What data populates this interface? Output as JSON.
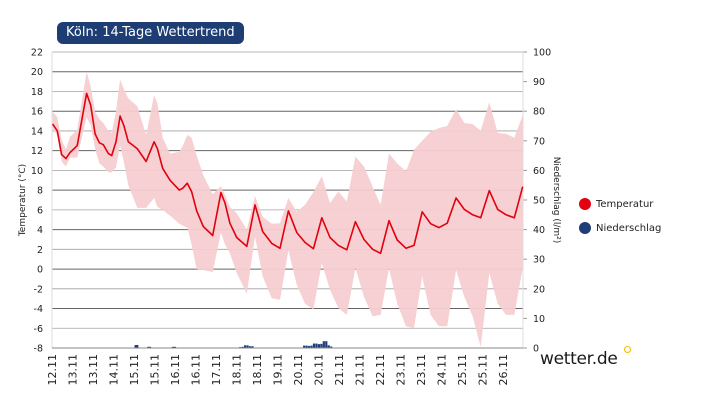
{
  "title": "Köln: 14-Tage Wettertrend",
  "logo": "wetter.de",
  "legend": [
    {
      "label": "Temperatur",
      "color": "#e3000f"
    },
    {
      "label": "Niederschlag",
      "color": "#1f3d78"
    }
  ],
  "colors": {
    "line": "#e3000f",
    "band": "#f5cdd0",
    "bars": "#1f3d78",
    "grid": "#555555",
    "title_bg": "#1e3d73",
    "logo_dot": "#f5b800"
  },
  "chart_data": {
    "type": "line",
    "ylabel": "Temperatur (°C)",
    "y2label": "Niederschlag (l/m²)",
    "ylim": [
      -8,
      22
    ],
    "y2lim": [
      0,
      100
    ],
    "yticks": [
      22,
      20,
      18,
      16,
      14,
      12,
      10,
      8,
      6,
      4,
      2,
      0,
      -2,
      -4,
      -6,
      -8
    ],
    "y2ticks": [
      100,
      90,
      80,
      70,
      60,
      50,
      40,
      30,
      20,
      10,
      0
    ],
    "grid": true,
    "legend_position": "right",
    "x_tick_labels": [
      "12.11",
      "13.11",
      "13.11",
      "14.11",
      "15.11",
      "15.11",
      "16.11",
      "16.11",
      "17.11",
      "18.11",
      "18.11",
      "19.11",
      "20.11",
      "20.11",
      "21.11",
      "21.11",
      "22.11",
      "23.11",
      "23.11",
      "24.11",
      "25.11",
      "25.11",
      "26.11"
    ],
    "x_unit": "position along the date tick labels (0 = first label 12.11)",
    "temperature": {
      "name": "Temperatur",
      "points": [
        [
          0.03,
          14.7,
          14.2,
          15.95
        ],
        [
          0.26,
          14.0,
          13.6,
          15.4
        ],
        [
          0.47,
          11.6,
          10.9,
          13.1
        ],
        [
          0.68,
          11.2,
          10.4,
          12.1
        ],
        [
          0.88,
          11.8,
          11.3,
          13.4
        ],
        [
          1.23,
          12.5,
          11.3,
          14.1
        ],
        [
          1.69,
          17.8,
          15.4,
          20.0
        ],
        [
          1.89,
          16.6,
          14.6,
          18.5
        ],
        [
          2.1,
          13.7,
          12.2,
          15.95
        ],
        [
          2.31,
          12.8,
          10.7,
          15.2
        ],
        [
          2.5,
          12.6,
          10.4,
          14.8
        ],
        [
          2.75,
          11.7,
          9.8,
          14.0
        ],
        [
          2.91,
          11.5,
          9.8,
          13.8
        ],
        [
          3.12,
          12.9,
          10.3,
          16.0
        ],
        [
          3.32,
          15.5,
          12.5,
          19.2
        ],
        [
          3.51,
          14.5,
          10.8,
          18.2
        ],
        [
          3.72,
          12.9,
          8.5,
          17.3
        ],
        [
          4.16,
          12.2,
          6.2,
          16.5
        ],
        [
          4.59,
          10.9,
          6.2,
          13.6
        ],
        [
          4.98,
          12.9,
          7.2,
          17.6
        ],
        [
          5.14,
          12.2,
          6.3,
          16.8
        ],
        [
          5.4,
          10.2,
          6.0,
          13.3
        ],
        [
          5.76,
          9.0,
          5.4,
          11.7
        ],
        [
          6.21,
          8.0,
          4.6,
          11.9
        ],
        [
          6.38,
          8.2,
          4.4,
          12.5
        ],
        [
          6.6,
          8.7,
          4.2,
          13.6
        ],
        [
          6.81,
          7.85,
          2.5,
          13.3
        ],
        [
          7.06,
          5.9,
          0.0,
          11.5
        ],
        [
          7.38,
          4.3,
          -0.1,
          9.5
        ],
        [
          7.84,
          3.4,
          -0.3,
          7.6
        ],
        [
          8.24,
          7.75,
          3.7,
          8.4
        ],
        [
          8.44,
          6.7,
          2.5,
          7.5
        ],
        [
          8.68,
          4.65,
          1.6,
          6.3
        ],
        [
          9.01,
          3.2,
          -0.4,
          5.65
        ],
        [
          9.5,
          2.3,
          -2.5,
          4.0
        ],
        [
          9.9,
          6.5,
          3.3,
          7.4
        ],
        [
          10.28,
          3.8,
          -0.75,
          5.3
        ],
        [
          10.72,
          2.6,
          -2.95,
          4.6
        ],
        [
          11.12,
          2.1,
          -3.1,
          4.65
        ],
        [
          11.53,
          5.9,
          1.9,
          7.2
        ],
        [
          11.94,
          3.7,
          -1.6,
          5.8
        ],
        [
          12.34,
          2.7,
          -3.5,
          6.5
        ],
        [
          12.75,
          2.05,
          -4.1,
          7.8
        ],
        [
          13.16,
          5.2,
          0.6,
          9.4
        ],
        [
          13.56,
          3.2,
          -2.1,
          6.7
        ],
        [
          13.97,
          2.4,
          -3.95,
          7.85
        ],
        [
          14.38,
          1.95,
          -4.65,
          6.85
        ],
        [
          14.8,
          4.8,
          0.1,
          11.4
        ],
        [
          15.22,
          3.0,
          -2.8,
          10.4
        ],
        [
          15.64,
          2.0,
          -4.8,
          8.35
        ],
        [
          16.03,
          1.6,
          -4.65,
          6.5
        ],
        [
          16.44,
          4.9,
          0.1,
          11.7
        ],
        [
          16.84,
          2.95,
          -3.5,
          10.7
        ],
        [
          17.27,
          2.1,
          -5.8,
          9.9
        ],
        [
          17.66,
          2.4,
          -6.0,
          12.1
        ],
        [
          18.06,
          5.8,
          -0.75,
          13.0
        ],
        [
          18.47,
          4.6,
          -4.65,
          13.9
        ],
        [
          18.88,
          4.2,
          -5.8,
          14.3
        ],
        [
          19.28,
          4.65,
          -5.8,
          14.5
        ],
        [
          19.71,
          7.2,
          -0.1,
          16.2
        ],
        [
          20.11,
          6.05,
          -2.8,
          14.8
        ],
        [
          20.52,
          5.5,
          -4.8,
          14.7
        ],
        [
          20.91,
          5.2,
          -7.9,
          14.0
        ],
        [
          21.33,
          7.95,
          -0.4,
          16.9
        ],
        [
          21.74,
          6.05,
          -3.5,
          13.8
        ],
        [
          22.15,
          5.5,
          -4.65,
          13.7
        ],
        [
          22.55,
          5.2,
          -4.65,
          13.3
        ],
        [
          22.96,
          8.35,
          0.1,
          15.6
        ]
      ],
      "point_format": [
        "x",
        "temperature",
        "range_min",
        "range_max"
      ]
    },
    "precipitation": {
      "name": "Niederschlag",
      "bars": [
        [
          4.08,
          1.0
        ],
        [
          4.16,
          1.0
        ],
        [
          4.7,
          0.4
        ],
        [
          4.78,
          0.4
        ],
        [
          5.9,
          0.4
        ],
        [
          6.0,
          0.4
        ],
        [
          9.18,
          0.3
        ],
        [
          9.3,
          0.4
        ],
        [
          9.42,
          0.9
        ],
        [
          9.54,
          0.9
        ],
        [
          9.66,
          0.6
        ],
        [
          9.78,
          0.6
        ],
        [
          12.3,
          0.8
        ],
        [
          12.42,
          0.8
        ],
        [
          12.54,
          0.7
        ],
        [
          12.66,
          0.8
        ],
        [
          12.78,
          1.5
        ],
        [
          12.9,
          1.5
        ],
        [
          13.02,
          1.3
        ],
        [
          13.14,
          1.4
        ],
        [
          13.26,
          2.3
        ],
        [
          13.38,
          2.3
        ],
        [
          13.5,
          0.9
        ],
        [
          13.62,
          0.5
        ]
      ],
      "bar_format": [
        "x",
        "mm"
      ]
    }
  }
}
